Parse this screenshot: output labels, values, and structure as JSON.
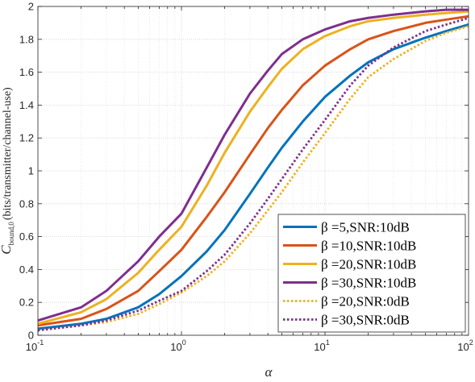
{
  "chart_data": {
    "type": "line",
    "title": "",
    "xlabel": "α",
    "ylabel": "C_bound,0 (bits/transmitter/channel-use)",
    "ylabel_parts": {
      "symbol": "C",
      "subscript": "bound,0",
      "unit": "(bits/transmitter/channel-use)"
    },
    "x_scale": "log",
    "xlim": [
      0.1,
      100
    ],
    "ylim": [
      0,
      2
    ],
    "x_ticks": [
      {
        "base": "10",
        "exp": "-1"
      },
      {
        "base": "10",
        "exp": "0"
      },
      {
        "base": "10",
        "exp": "1"
      },
      {
        "base": "10",
        "exp": "2"
      }
    ],
    "y_ticks": [
      "0",
      "0.2",
      "0.4",
      "0.6",
      "0.8",
      "1",
      "1.2",
      "1.4",
      "1.6",
      "1.8",
      "2"
    ],
    "grid": true,
    "legend_position": "bottom-right",
    "x": [
      0.1,
      0.2,
      0.3,
      0.5,
      0.7,
      1,
      1.5,
      2,
      3,
      4,
      5,
      7,
      10,
      15,
      20,
      30,
      50,
      70,
      100
    ],
    "series": [
      {
        "name": "β =5,SNR:10dB",
        "beta": "5",
        "snr": "10dB",
        "color": "#0072BD",
        "dash": "solid",
        "values": [
          0.04,
          0.07,
          0.1,
          0.17,
          0.25,
          0.36,
          0.51,
          0.64,
          0.86,
          1.02,
          1.14,
          1.3,
          1.45,
          1.58,
          1.66,
          1.74,
          1.81,
          1.85,
          1.89
        ]
      },
      {
        "name": "β =10,SNR:10dB",
        "beta": "10",
        "snr": "10dB",
        "color": "#D95319",
        "dash": "solid",
        "values": [
          0.06,
          0.1,
          0.16,
          0.27,
          0.39,
          0.52,
          0.72,
          0.87,
          1.1,
          1.26,
          1.37,
          1.52,
          1.64,
          1.74,
          1.8,
          1.85,
          1.9,
          1.92,
          1.94
        ]
      },
      {
        "name": "β =20,SNR:10dB",
        "beta": "20",
        "snr": "10dB",
        "color": "#EDB120",
        "dash": "solid",
        "values": [
          0.07,
          0.14,
          0.22,
          0.38,
          0.52,
          0.66,
          0.91,
          1.11,
          1.36,
          1.51,
          1.62,
          1.74,
          1.82,
          1.88,
          1.91,
          1.93,
          1.95,
          1.96,
          1.97
        ]
      },
      {
        "name": "β =30,SNR:10dB",
        "beta": "30",
        "snr": "10dB",
        "color": "#7E2F8E",
        "dash": "solid",
        "values": [
          0.09,
          0.17,
          0.27,
          0.45,
          0.6,
          0.74,
          1.02,
          1.22,
          1.47,
          1.61,
          1.71,
          1.8,
          1.86,
          1.91,
          1.93,
          1.95,
          1.97,
          1.98,
          1.98
        ]
      },
      {
        "name": "β =20,SNR:0dB",
        "beta": "20",
        "snr": "0dB",
        "color": "#EDB120",
        "dash": "dotted",
        "values": [
          0.03,
          0.06,
          0.08,
          0.13,
          0.19,
          0.26,
          0.36,
          0.45,
          0.62,
          0.76,
          0.87,
          1.05,
          1.23,
          1.44,
          1.57,
          1.68,
          1.79,
          1.84,
          1.88
        ]
      },
      {
        "name": "β =30,SNR:0dB",
        "beta": "30",
        "snr": "0dB",
        "color": "#7E2F8E",
        "dash": "dotted",
        "values": [
          0.03,
          0.06,
          0.09,
          0.15,
          0.21,
          0.27,
          0.39,
          0.49,
          0.68,
          0.83,
          0.95,
          1.13,
          1.31,
          1.52,
          1.64,
          1.75,
          1.85,
          1.89,
          1.93
        ]
      }
    ]
  }
}
